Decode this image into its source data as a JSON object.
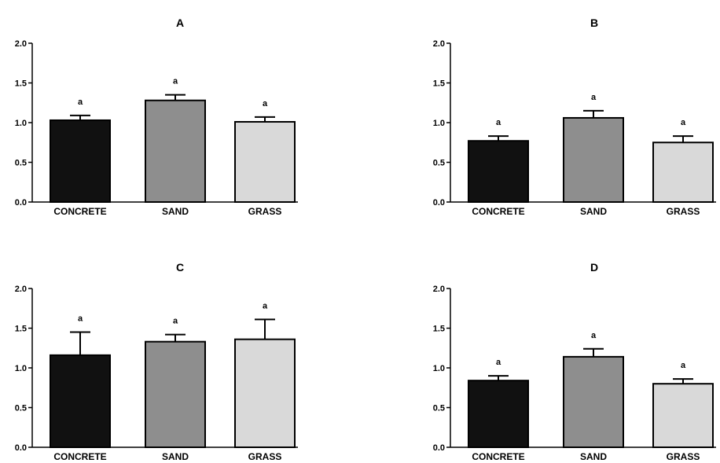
{
  "chart_data": [
    {
      "type": "bar",
      "title": "A",
      "categories": [
        "CONCRETE",
        "SAND",
        "GRASS"
      ],
      "values": [
        1.03,
        1.28,
        1.01
      ],
      "errors": [
        0.06,
        0.07,
        0.06
      ],
      "significance": [
        "a",
        "a",
        "a"
      ],
      "bar_colors": [
        "#111111",
        "#8e8e8e",
        "#d9d9d9"
      ],
      "ylim": [
        0,
        2.0
      ],
      "yticks": [
        "0.0",
        "0.5",
        "1.0",
        "1.5",
        "2.0"
      ],
      "xlabel": "",
      "ylabel": ""
    },
    {
      "type": "bar",
      "title": "B",
      "categories": [
        "CONCRETE",
        "SAND",
        "GRASS"
      ],
      "values": [
        0.77,
        1.06,
        0.75
      ],
      "errors": [
        0.06,
        0.09,
        0.08
      ],
      "significance": [
        "a",
        "a",
        "a"
      ],
      "bar_colors": [
        "#111111",
        "#8e8e8e",
        "#d9d9d9"
      ],
      "ylim": [
        0,
        2.0
      ],
      "yticks": [
        "0.0",
        "0.5",
        "1.0",
        "1.5",
        "2.0"
      ],
      "xlabel": "",
      "ylabel": ""
    },
    {
      "type": "bar",
      "title": "C",
      "categories": [
        "CONCRETE",
        "SAND",
        "GRASS"
      ],
      "values": [
        1.16,
        1.33,
        1.36
      ],
      "errors": [
        0.29,
        0.09,
        0.25
      ],
      "significance": [
        "a",
        "a",
        "a"
      ],
      "bar_colors": [
        "#111111",
        "#8e8e8e",
        "#d9d9d9"
      ],
      "ylim": [
        0,
        2.0
      ],
      "yticks": [
        "0.0",
        "0.5",
        "1.0",
        "1.5",
        "2.0"
      ],
      "xlabel": "",
      "ylabel": ""
    },
    {
      "type": "bar",
      "title": "D",
      "categories": [
        "CONCRETE",
        "SAND",
        "GRASS"
      ],
      "values": [
        0.84,
        1.14,
        0.8
      ],
      "errors": [
        0.06,
        0.1,
        0.06
      ],
      "significance": [
        "a",
        "a",
        "a"
      ],
      "bar_colors": [
        "#111111",
        "#8e8e8e",
        "#d9d9d9"
      ],
      "ylim": [
        0,
        2.0
      ],
      "yticks": [
        "0.0",
        "0.5",
        "1.0",
        "1.5",
        "2.0"
      ],
      "xlabel": "",
      "ylabel": ""
    }
  ]
}
